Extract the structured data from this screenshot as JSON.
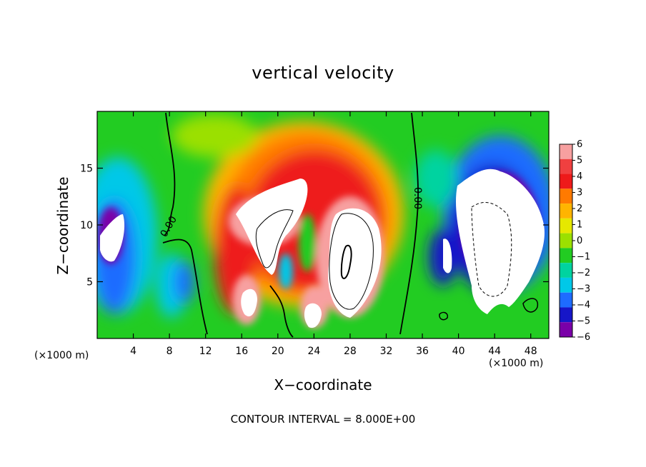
{
  "chart_data": {
    "type": "heatmap",
    "title": "vertical velocity",
    "xlabel": "X−coordinate",
    "ylabel": "Z−coordinate",
    "x_unit": "(×1000 m)",
    "xlim": [
      0,
      50
    ],
    "ylim": [
      0,
      20
    ],
    "x_ticks": [
      4,
      8,
      12,
      16,
      20,
      24,
      28,
      32,
      36,
      40,
      44,
      48
    ],
    "y_ticks": [
      5,
      10,
      15
    ],
    "colorbar": {
      "levels": [
        6,
        5,
        4,
        3,
        2,
        1,
        0,
        -1,
        -2,
        -3,
        -4,
        -5,
        -6
      ],
      "labels": [
        "6",
        "5",
        "4",
        "3",
        "2",
        "1",
        "0",
        "−1",
        "−2",
        "−3",
        "−4",
        "−5",
        "−6"
      ],
      "colors": [
        "#f7a0a0",
        "#f04040",
        "#ee1a1a",
        "#ff7a00",
        "#ffb400",
        "#e6e800",
        "#9be000",
        "#22cc22",
        "#00d3a0",
        "#00c8e8",
        "#1e6cff",
        "#1616c8",
        "#7a00a8"
      ]
    },
    "contour_label": "0.00",
    "contour_interval_text": "CONTOUR INTERVAL = 8.000E+00",
    "features": [
      {
        "region": "updraft core",
        "x_range": [
          13,
          33
        ],
        "z_range": [
          0.5,
          17
        ],
        "max_value": ">6"
      },
      {
        "region": "downdraft",
        "x_range": [
          39,
          50
        ],
        "z_range": [
          2,
          14
        ],
        "min_value": "<-6"
      },
      {
        "region": "downdraft",
        "x_range": [
          0,
          3
        ],
        "z_range": [
          3,
          11
        ],
        "min_value": "<-6"
      }
    ]
  }
}
